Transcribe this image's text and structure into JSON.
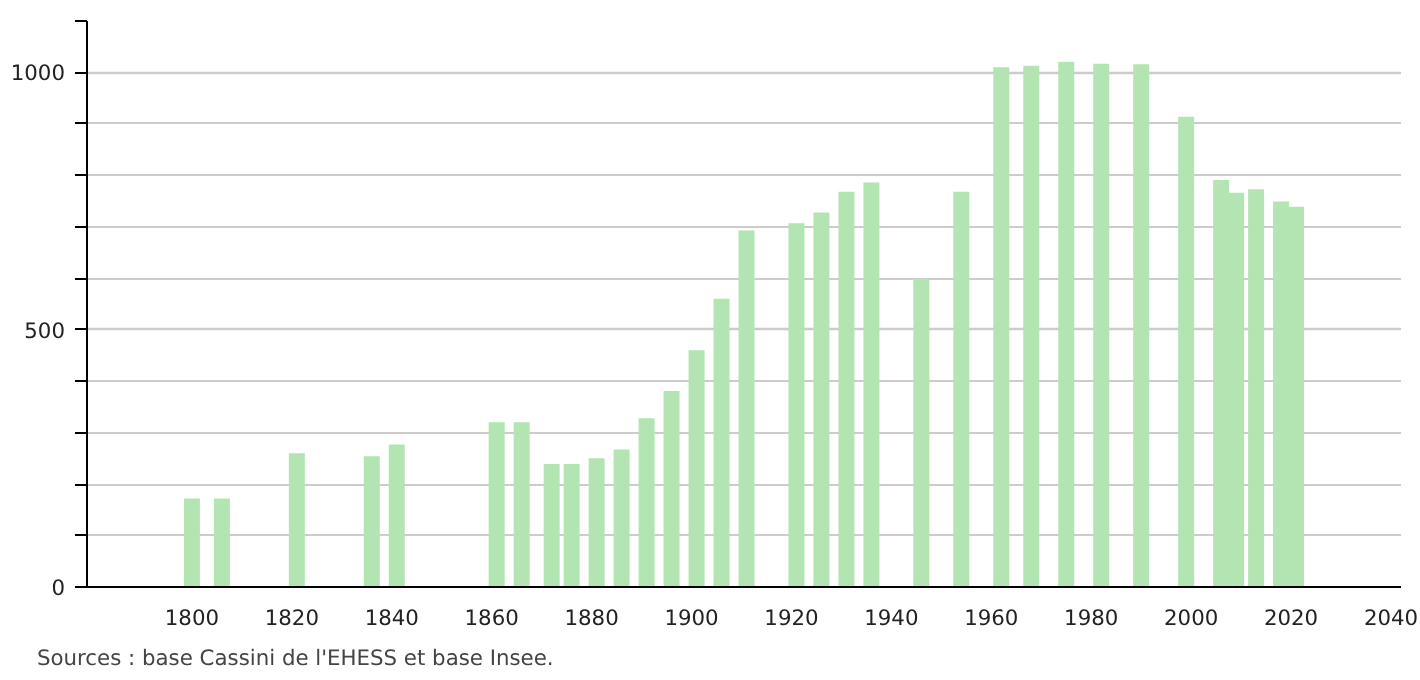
{
  "chart_data": {
    "type": "bar",
    "x": [
      1800,
      1806,
      1821,
      1836,
      1841,
      1861,
      1866,
      1872,
      1876,
      1881,
      1886,
      1891,
      1896,
      1901,
      1906,
      1911,
      1921,
      1926,
      1931,
      1936,
      1946,
      1954,
      1962,
      1968,
      1975,
      1982,
      1990,
      1999,
      2006,
      2009,
      2013,
      2018,
      2021
    ],
    "values": [
      172,
      172,
      260,
      254,
      277,
      320,
      320,
      239,
      239,
      250,
      267,
      328,
      381,
      460,
      560,
      693,
      707,
      728,
      768,
      786,
      599,
      768,
      1010,
      1013,
      1021,
      1017,
      1016,
      914,
      791,
      766,
      773,
      749,
      739
    ],
    "color": "#b2e5b2",
    "xlim": [
      1779,
      2042
    ],
    "xticks": [
      1800,
      1820,
      1840,
      1860,
      1880,
      1900,
      1920,
      1940,
      1960,
      1980,
      2000,
      2020,
      2040
    ],
    "ylim": [
      0,
      1100
    ],
    "yticks": [
      0,
      {
        "value": 100,
        "label": null
      },
      {
        "value": 200,
        "label": null
      },
      {
        "value": 300,
        "label": null
      },
      {
        "value": 400,
        "label": null
      },
      500,
      {
        "value": 600,
        "label": null
      },
      {
        "value": 700,
        "label": null
      },
      {
        "value": 800,
        "label": null
      },
      {
        "value": 900,
        "label": null
      },
      1000,
      {
        "value": 1100,
        "label": null
      }
    ],
    "grid": "y",
    "annotations": [
      "Sources : base Cassini de l'EHESS et base Insee."
    ]
  }
}
